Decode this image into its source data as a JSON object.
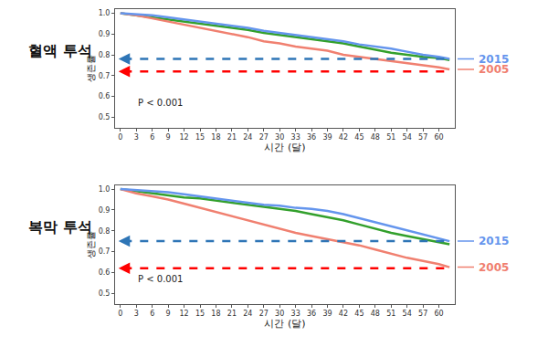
{
  "chart_data": [
    {
      "type": "line",
      "title": "혈액 투석",
      "x_label": "시간 (달)",
      "y_label": "생존률",
      "x": [
        0,
        3,
        6,
        9,
        12,
        15,
        18,
        21,
        24,
        27,
        30,
        33,
        36,
        39,
        42,
        45,
        48,
        51,
        54,
        57,
        60,
        62
      ],
      "series": [
        {
          "color": "#33a02c",
          "values": [
            1.0,
            0.99,
            0.98,
            0.97,
            0.96,
            0.95,
            0.94,
            0.93,
            0.92,
            0.905,
            0.895,
            0.885,
            0.875,
            0.865,
            0.855,
            0.84,
            0.825,
            0.81,
            0.8,
            0.79,
            0.785,
            0.775
          ]
        },
        {
          "name": "2005",
          "color": "#f08070",
          "values": [
            1.0,
            0.99,
            0.975,
            0.96,
            0.945,
            0.93,
            0.915,
            0.9,
            0.885,
            0.865,
            0.855,
            0.84,
            0.83,
            0.82,
            0.8,
            0.79,
            0.78,
            0.77,
            0.76,
            0.75,
            0.74,
            0.73
          ]
        },
        {
          "name": "2015",
          "color": "#6495ed",
          "values": [
            1.0,
            0.995,
            0.99,
            0.98,
            0.97,
            0.96,
            0.95,
            0.94,
            0.93,
            0.915,
            0.905,
            0.895,
            0.885,
            0.875,
            0.865,
            0.85,
            0.84,
            0.83,
            0.815,
            0.8,
            0.79,
            0.78
          ]
        }
      ],
      "reference_lines": [
        {
          "value": 0.78,
          "color": "#2e75b6",
          "line_style": "dashed"
        },
        {
          "value": 0.72,
          "color": "#ff0000",
          "line_style": "dashed"
        }
      ],
      "annotations": [
        {
          "text": "P < 0.001",
          "x": 3,
          "y": 0.57
        }
      ],
      "xlim": [
        -1,
        63
      ],
      "xticks": [
        0,
        3,
        6,
        9,
        12,
        15,
        18,
        21,
        24,
        27,
        30,
        33,
        36,
        39,
        42,
        45,
        48,
        51,
        54,
        57,
        60
      ],
      "ylim": [
        0.45,
        1.02
      ],
      "yticks": [
        0.5,
        0.6,
        0.7,
        0.8,
        0.9,
        {
          "value": 1,
          "label": "1.0"
        }
      ],
      "grid": false,
      "legend": "right"
    },
    {
      "type": "line",
      "title": "복막 투석",
      "x_label": "시간 (달)",
      "y_label": "생존률",
      "x": [
        0,
        3,
        6,
        9,
        12,
        15,
        18,
        21,
        24,
        27,
        30,
        33,
        36,
        39,
        42,
        45,
        48,
        51,
        54,
        57,
        60,
        62
      ],
      "series": [
        {
          "color": "#33a02c",
          "values": [
            1.0,
            0.99,
            0.98,
            0.97,
            0.96,
            0.955,
            0.945,
            0.935,
            0.925,
            0.915,
            0.905,
            0.895,
            0.88,
            0.865,
            0.85,
            0.83,
            0.81,
            0.79,
            0.775,
            0.76,
            0.745,
            0.735
          ]
        },
        {
          "name": "2005",
          "color": "#f08070",
          "values": [
            1.0,
            0.98,
            0.965,
            0.95,
            0.93,
            0.91,
            0.89,
            0.87,
            0.85,
            0.83,
            0.81,
            0.79,
            0.775,
            0.76,
            0.745,
            0.73,
            0.71,
            0.69,
            0.67,
            0.655,
            0.64,
            0.625
          ]
        },
        {
          "name": "2015",
          "color": "#6495ed",
          "values": [
            1.0,
            0.995,
            0.99,
            0.985,
            0.975,
            0.965,
            0.955,
            0.945,
            0.935,
            0.925,
            0.92,
            0.91,
            0.905,
            0.895,
            0.88,
            0.86,
            0.84,
            0.82,
            0.8,
            0.78,
            0.76,
            0.75
          ]
        }
      ],
      "reference_lines": [
        {
          "value": 0.75,
          "color": "#2e75b6",
          "line_style": "dashed"
        },
        {
          "value": 0.62,
          "color": "#ff0000",
          "line_style": "dashed"
        }
      ],
      "annotations": [
        {
          "text": "P < 0.001",
          "x": 3,
          "y": 0.57
        }
      ],
      "xlim": [
        -1,
        63
      ],
      "xticks": [
        0,
        3,
        6,
        9,
        12,
        15,
        18,
        21,
        24,
        27,
        30,
        33,
        36,
        39,
        42,
        45,
        48,
        51,
        54,
        57,
        60
      ],
      "ylim": [
        0.45,
        1.02
      ],
      "yticks": [
        0.5,
        0.6,
        0.7,
        0.8,
        0.9,
        {
          "value": 1,
          "label": "1.0"
        }
      ],
      "grid": false,
      "legend": "right"
    }
  ]
}
